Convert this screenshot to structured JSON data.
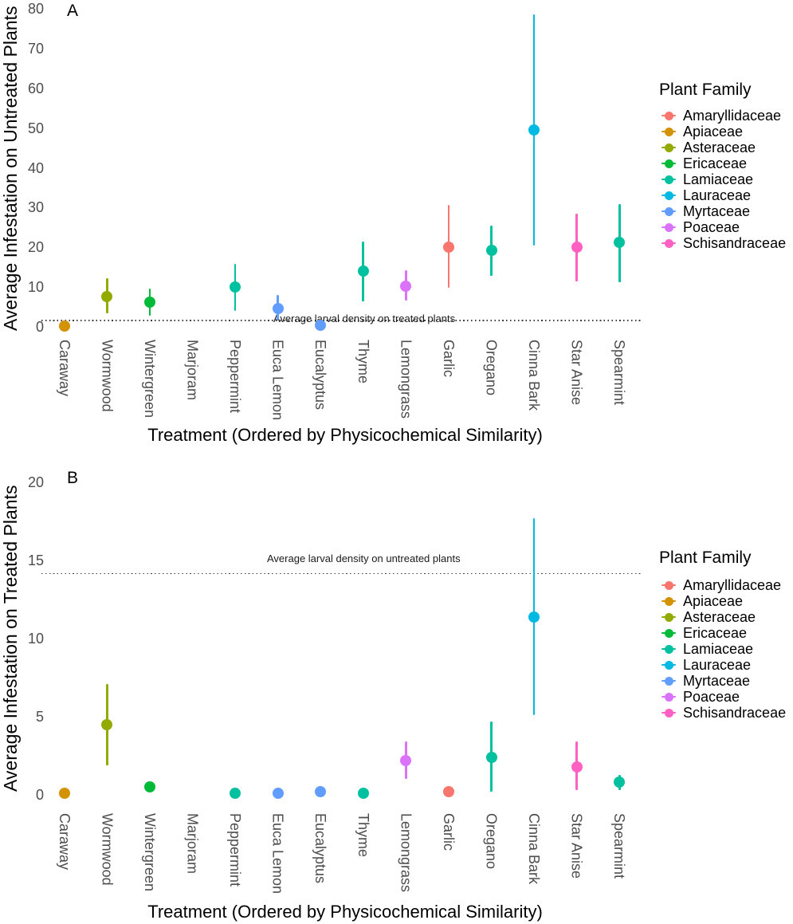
{
  "figure": {
    "legend": {
      "title": "Plant Family",
      "items": [
        {
          "label": "Amaryllidaceae",
          "color": "#F8766D"
        },
        {
          "label": "Apiaceae",
          "color": "#D39200"
        },
        {
          "label": "Asteraceae",
          "color": "#93AA00"
        },
        {
          "label": "Ericaceae",
          "color": "#00BA38"
        },
        {
          "label": "Lamiaceae",
          "color": "#00C19F"
        },
        {
          "label": "Lauraceae",
          "color": "#00B9E3"
        },
        {
          "label": "Myrtaceae",
          "color": "#619CFF"
        },
        {
          "label": "Poaceae",
          "color": "#DB72FB"
        },
        {
          "label": "Schisandraceae",
          "color": "#FF61C3"
        }
      ]
    }
  },
  "chart_data": [
    {
      "type": "scatter",
      "panel_tag": "A",
      "ylabel": "Average Infestation on Untreated Plants",
      "xlabel": "Treatment (Ordered by Physicochemical Similarity)",
      "ylim": [
        0,
        80
      ],
      "yticks": [
        0,
        10,
        20,
        30,
        40,
        50,
        60,
        70,
        80
      ],
      "grid": false,
      "legend_position": "right",
      "reference_line": {
        "value": 1.8,
        "style": "dotted",
        "label": "Average larval density on treated plants"
      },
      "categories": [
        "Caraway",
        "Wormwood",
        "Wintergreen",
        "Marjoram",
        "Peppermint",
        "Euca Lemon",
        "Eucalyptus",
        "Thyme",
        "Lemongrass",
        "Garlic",
        "Oregano",
        "Cinna Bark",
        "Star Anise",
        "Spearmint"
      ],
      "points": [
        {
          "treatment": "Caraway",
          "family": "Apiaceae",
          "y": 0.2,
          "ymin": 0.2,
          "ymax": 0.2
        },
        {
          "treatment": "Wormwood",
          "family": "Asteraceae",
          "y": 7.6,
          "ymin": 3.4,
          "ymax": 12.3
        },
        {
          "treatment": "Wintergreen",
          "family": "Ericaceae",
          "y": 6.2,
          "ymin": 2.8,
          "ymax": 9.7
        },
        {
          "treatment": "Marjoram",
          "family": "Lamiaceae",
          "y": null,
          "ymin": null,
          "ymax": null
        },
        {
          "treatment": "Peppermint",
          "family": "Lamiaceae",
          "y": 10.0,
          "ymin": 4.0,
          "ymax": 15.8
        },
        {
          "treatment": "Euca Lemon",
          "family": "Myrtaceae",
          "y": 4.7,
          "ymin": 1.9,
          "ymax": 8.0
        },
        {
          "treatment": "Eucalyptus",
          "family": "Myrtaceae",
          "y": 0.5,
          "ymin": 0.5,
          "ymax": 0.5
        },
        {
          "treatment": "Thyme",
          "family": "Lamiaceae",
          "y": 14.0,
          "ymin": 6.4,
          "ymax": 21.4
        },
        {
          "treatment": "Lemongrass",
          "family": "Poaceae",
          "y": 10.3,
          "ymin": 6.6,
          "ymax": 14.3
        },
        {
          "treatment": "Garlic",
          "family": "Amaryllidaceae",
          "y": 20.1,
          "ymin": 9.9,
          "ymax": 30.6
        },
        {
          "treatment": "Oregano",
          "family": "Lamiaceae",
          "y": 19.3,
          "ymin": 12.9,
          "ymax": 25.4
        },
        {
          "treatment": "Cinna Bark",
          "family": "Lauraceae",
          "y": 49.5,
          "ymin": 20.4,
          "ymax": 78.5
        },
        {
          "treatment": "Star Anise",
          "family": "Schisandraceae",
          "y": 20.1,
          "ymin": 11.5,
          "ymax": 28.5
        },
        {
          "treatment": "Spearmint",
          "family": "Lamiaceae",
          "y": 21.3,
          "ymin": 11.3,
          "ymax": 30.8
        }
      ]
    },
    {
      "type": "scatter",
      "panel_tag": "B",
      "ylabel": "Average Infestation on Treated Plants",
      "xlabel": "Treatment (Ordered by Physicochemical Similarity)",
      "ylim": [
        0,
        20
      ],
      "yticks": [
        0,
        5,
        10,
        15,
        20
      ],
      "grid": false,
      "legend_position": "right",
      "reference_line": {
        "value": 14.2,
        "style": "dotted",
        "label": "Average larval density on untreated plants"
      },
      "categories": [
        "Caraway",
        "Wormwood",
        "Wintergreen",
        "Marjoram",
        "Peppermint",
        "Euca Lemon",
        "Eucalyptus",
        "Thyme",
        "Lemongrass",
        "Garlic",
        "Oregano",
        "Cinna Bark",
        "Star Anise",
        "Spearmint"
      ],
      "points": [
        {
          "treatment": "Caraway",
          "family": "Apiaceae",
          "y": 0.1,
          "ymin": 0.1,
          "ymax": 0.1
        },
        {
          "treatment": "Wormwood",
          "family": "Asteraceae",
          "y": 4.5,
          "ymin": 1.9,
          "ymax": 7.1
        },
        {
          "treatment": "Wintergreen",
          "family": "Ericaceae",
          "y": 0.5,
          "ymin": 0.5,
          "ymax": 0.5
        },
        {
          "treatment": "Marjoram",
          "family": "Lamiaceae",
          "y": null,
          "ymin": null,
          "ymax": null
        },
        {
          "treatment": "Peppermint",
          "family": "Lamiaceae",
          "y": 0.1,
          "ymin": 0.1,
          "ymax": 0.1
        },
        {
          "treatment": "Euca Lemon",
          "family": "Myrtaceae",
          "y": 0.1,
          "ymin": 0.1,
          "ymax": 0.1
        },
        {
          "treatment": "Eucalyptus",
          "family": "Myrtaceae",
          "y": 0.2,
          "ymin": 0.2,
          "ymax": 0.2
        },
        {
          "treatment": "Thyme",
          "family": "Lamiaceae",
          "y": 0.1,
          "ymin": 0.1,
          "ymax": 0.1
        },
        {
          "treatment": "Lemongrass",
          "family": "Poaceae",
          "y": 2.2,
          "ymin": 1.0,
          "ymax": 3.4
        },
        {
          "treatment": "Garlic",
          "family": "Amaryllidaceae",
          "y": 0.2,
          "ymin": 0.2,
          "ymax": 0.2
        },
        {
          "treatment": "Oregano",
          "family": "Lamiaceae",
          "y": 2.4,
          "ymin": 0.2,
          "ymax": 4.7
        },
        {
          "treatment": "Cinna Bark",
          "family": "Lauraceae",
          "y": 11.4,
          "ymin": 5.1,
          "ymax": 17.7
        },
        {
          "treatment": "Star Anise",
          "family": "Schisandraceae",
          "y": 1.8,
          "ymin": 0.3,
          "ymax": 3.4
        },
        {
          "treatment": "Spearmint",
          "family": "Lamiaceae",
          "y": 0.8,
          "ymin": 0.3,
          "ymax": 1.3
        }
      ]
    }
  ]
}
